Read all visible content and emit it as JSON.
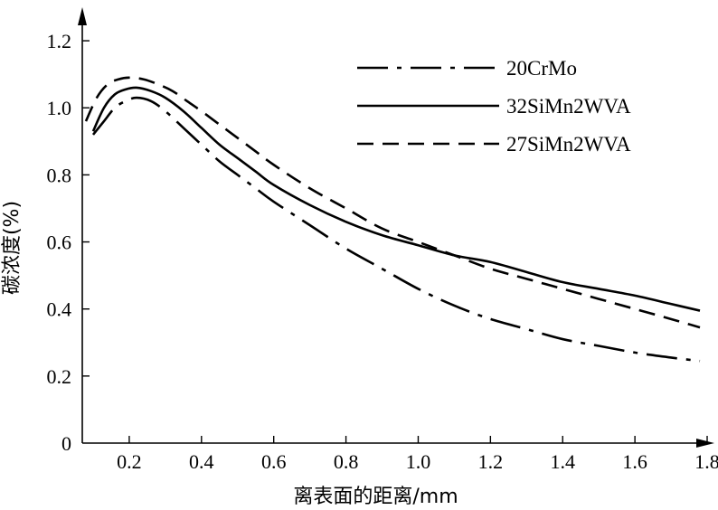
{
  "chart_data": {
    "type": "line",
    "title": "",
    "xlabel": "离表面的距离/mm",
    "ylabel": "碳浓度(%)",
    "xlim": [
      0.07,
      1.82
    ],
    "ylim": [
      0,
      1.3
    ],
    "xticks": [
      "0.2",
      "0.4",
      "0.6",
      "0.8",
      "1.0",
      "1.2",
      "1.4",
      "1.6",
      "1.8"
    ],
    "xtick_values": [
      0.2,
      0.4,
      0.6,
      0.8,
      1.0,
      1.2,
      1.4,
      1.6,
      1.8
    ],
    "yticks": [
      "0",
      "0.2",
      "0.4",
      "0.6",
      "0.8",
      "1.0",
      "1.2"
    ],
    "ytick_values": [
      0,
      0.2,
      0.4,
      0.6,
      0.8,
      1.0,
      1.2
    ],
    "legend_position": "top-right",
    "grid": false,
    "series": [
      {
        "name": "20CrMo",
        "style": "dashdot",
        "x": [
          0.1,
          0.13,
          0.16,
          0.19,
          0.22,
          0.26,
          0.3,
          0.35,
          0.4,
          0.45,
          0.5,
          0.55,
          0.6,
          0.7,
          0.8,
          0.9,
          1.0,
          1.1,
          1.2,
          1.3,
          1.4,
          1.5,
          1.6,
          1.7,
          1.78
        ],
        "y": [
          0.92,
          0.96,
          1.0,
          1.02,
          1.03,
          1.02,
          0.99,
          0.94,
          0.89,
          0.84,
          0.8,
          0.76,
          0.72,
          0.65,
          0.58,
          0.52,
          0.46,
          0.41,
          0.37,
          0.34,
          0.31,
          0.29,
          0.27,
          0.255,
          0.245
        ]
      },
      {
        "name": "32SiMn2WVA",
        "style": "solid",
        "x": [
          0.1,
          0.13,
          0.16,
          0.19,
          0.22,
          0.26,
          0.3,
          0.35,
          0.4,
          0.45,
          0.5,
          0.55,
          0.6,
          0.7,
          0.8,
          0.9,
          1.0,
          1.1,
          1.2,
          1.3,
          1.4,
          1.5,
          1.6,
          1.7,
          1.78
        ],
        "y": [
          0.93,
          1.0,
          1.04,
          1.055,
          1.06,
          1.05,
          1.03,
          0.99,
          0.94,
          0.89,
          0.85,
          0.81,
          0.77,
          0.71,
          0.66,
          0.62,
          0.59,
          0.56,
          0.54,
          0.51,
          0.48,
          0.46,
          0.44,
          0.415,
          0.395
        ]
      },
      {
        "name": "27SiMn2WVA",
        "style": "dashed",
        "x": [
          0.08,
          0.11,
          0.14,
          0.17,
          0.2,
          0.24,
          0.28,
          0.32,
          0.36,
          0.4,
          0.45,
          0.5,
          0.55,
          0.6,
          0.7,
          0.8,
          0.9,
          1.0,
          1.1,
          1.2,
          1.3,
          1.4,
          1.5,
          1.6,
          1.7,
          1.78
        ],
        "y": [
          0.96,
          1.03,
          1.07,
          1.085,
          1.09,
          1.085,
          1.07,
          1.05,
          1.02,
          0.99,
          0.95,
          0.91,
          0.87,
          0.83,
          0.76,
          0.7,
          0.64,
          0.6,
          0.56,
          0.52,
          0.49,
          0.46,
          0.43,
          0.4,
          0.37,
          0.345
        ]
      }
    ]
  }
}
